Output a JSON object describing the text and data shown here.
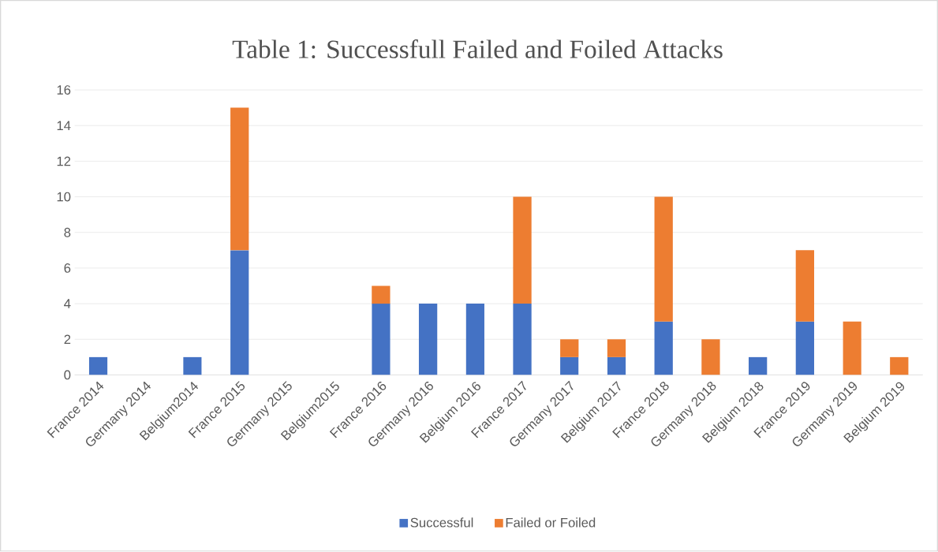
{
  "chart_data": {
    "type": "bar",
    "title": "Table 1: Successfull Failed and Foiled Attacks",
    "categories": [
      "France 2014",
      "Germany 2014",
      "Belgium2014",
      "France 2015",
      "Germany 2015",
      "Belgium2015",
      "France 2016",
      "Germany 2016",
      "Belgium 2016",
      "France 2017",
      "Germany 2017",
      "Belgium 2017",
      "France 2018",
      "Germany 2018",
      "Belgium 2018",
      "France 2019",
      "Germany 2019",
      "Belgium 2019"
    ],
    "series": [
      {
        "name": "Successful",
        "color": "#4472c4",
        "values": [
          1,
          null,
          1,
          7,
          null,
          null,
          4,
          4,
          4,
          4,
          1,
          1,
          3,
          null,
          1,
          3,
          null,
          null
        ]
      },
      {
        "name": "Failed or Foiled",
        "color": "#ed7d31",
        "values": [
          null,
          null,
          null,
          8,
          null,
          null,
          1,
          null,
          null,
          6,
          1,
          1,
          7,
          2,
          null,
          4,
          3,
          1
        ]
      }
    ],
    "stacked": true,
    "ylim": [
      0,
      16
    ],
    "yticks": [
      0,
      2,
      4,
      6,
      8,
      10,
      12,
      14,
      16
    ],
    "grid": "y",
    "legend": "bottom"
  }
}
